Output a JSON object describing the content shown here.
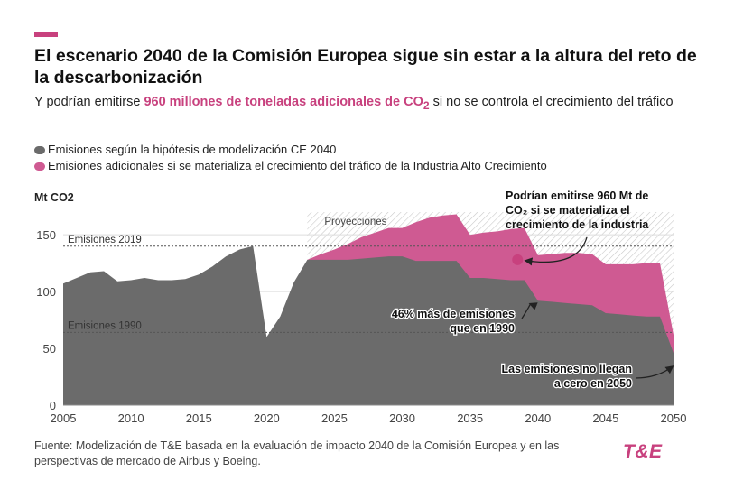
{
  "brand": {
    "accent": "#c8417e",
    "logo_text": "T&E"
  },
  "header": {
    "title": "El escenario 2040 de la Comisión Europea sigue sin estar a la altura del reto de la descarbonización",
    "subtitle_pre": "Y podrían emitirse ",
    "subtitle_highlight": "960 millones de toneladas adicionales de CO",
    "subtitle_highlight_sub": "2",
    "subtitle_post": " si no se controla el crecimiento del tráfico"
  },
  "legend": [
    {
      "label": "Emisiones según la hipótesis de modelización CE 2040",
      "color": "#6b6b6b"
    },
    {
      "label": "Emisiones adicionales si se materializa el crecimiento del tráfico de la Industria Alto Crecimiento",
      "color": "#cf5a92"
    }
  ],
  "footer": {
    "source": "Fuente: Modelización de T&E basada en la evaluación de impacto 2040 de la Comisión Europea y en las perspectivas de mercado de Airbus y Boeing."
  },
  "chart_data": {
    "type": "area",
    "ylabel": "Mt CO2",
    "xlim": [
      2005,
      2050
    ],
    "ylim": [
      0,
      170
    ],
    "x_ticks": [
      2005,
      2010,
      2015,
      2020,
      2025,
      2030,
      2035,
      2040,
      2045,
      2050
    ],
    "y_ticks": [
      0,
      50,
      100,
      150
    ],
    "grid": "horizontal",
    "series": [
      {
        "name": "Emisiones según la hipótesis de modelización CE 2040",
        "color": "#6b6b6b",
        "x": [
          2005,
          2006,
          2007,
          2008,
          2009,
          2010,
          2011,
          2012,
          2013,
          2014,
          2015,
          2016,
          2017,
          2018,
          2019,
          2020,
          2021,
          2022,
          2023,
          2024,
          2025,
          2026,
          2027,
          2028,
          2029,
          2030,
          2031,
          2032,
          2033,
          2034,
          2035,
          2036,
          2037,
          2038,
          2039,
          2040,
          2041,
          2042,
          2043,
          2044,
          2045,
          2046,
          2047,
          2048,
          2049,
          2050
        ],
        "values": [
          107,
          112,
          117,
          118,
          109,
          110,
          112,
          110,
          110,
          111,
          115,
          122,
          131,
          137,
          140,
          60,
          78,
          108,
          128,
          128,
          128,
          128,
          129,
          130,
          131,
          131,
          127,
          127,
          127,
          127,
          112,
          112,
          111,
          110,
          110,
          92,
          91,
          90,
          89,
          88,
          81,
          80,
          79,
          78,
          78,
          46
        ]
      },
      {
        "name": "Emisiones adicionales si se materializa el crecimiento del tráfico de la Industria Alto Crecimiento",
        "color": "#cf5a92",
        "x": [
          2023,
          2024,
          2025,
          2026,
          2027,
          2028,
          2029,
          2030,
          2031,
          2032,
          2033,
          2034,
          2035,
          2036,
          2037,
          2038,
          2039,
          2040,
          2041,
          2042,
          2043,
          2044,
          2045,
          2046,
          2047,
          2048,
          2049,
          2050
        ],
        "values": [
          128,
          133,
          137,
          142,
          148,
          152,
          156,
          156,
          161,
          165,
          167,
          168,
          150,
          152,
          153,
          155,
          156,
          132,
          133,
          134,
          134,
          133,
          124,
          124,
          124,
          125,
          125,
          62
        ]
      }
    ],
    "reference_lines": [
      {
        "label": "Emisiones 2019",
        "value": 140
      },
      {
        "label": "Emisiones 1990",
        "value": 64
      }
    ],
    "projection_region": {
      "label": "Proyecciones",
      "from": 2023,
      "to": 2050
    },
    "annotations": [
      {
        "text": [
          "Podrían emitirse 960 Mt de",
          "CO₂ si se materializa el",
          "crecimiento de la industria"
        ],
        "x": 2038.5,
        "y": 128
      },
      {
        "text": [
          "46% más de emisiones",
          "que en 1990"
        ],
        "x": 2039.5,
        "y": 90
      },
      {
        "text": [
          "Las emisiones no llegan",
          "a cero en 2050"
        ],
        "x": 2050,
        "y": 38
      }
    ]
  }
}
